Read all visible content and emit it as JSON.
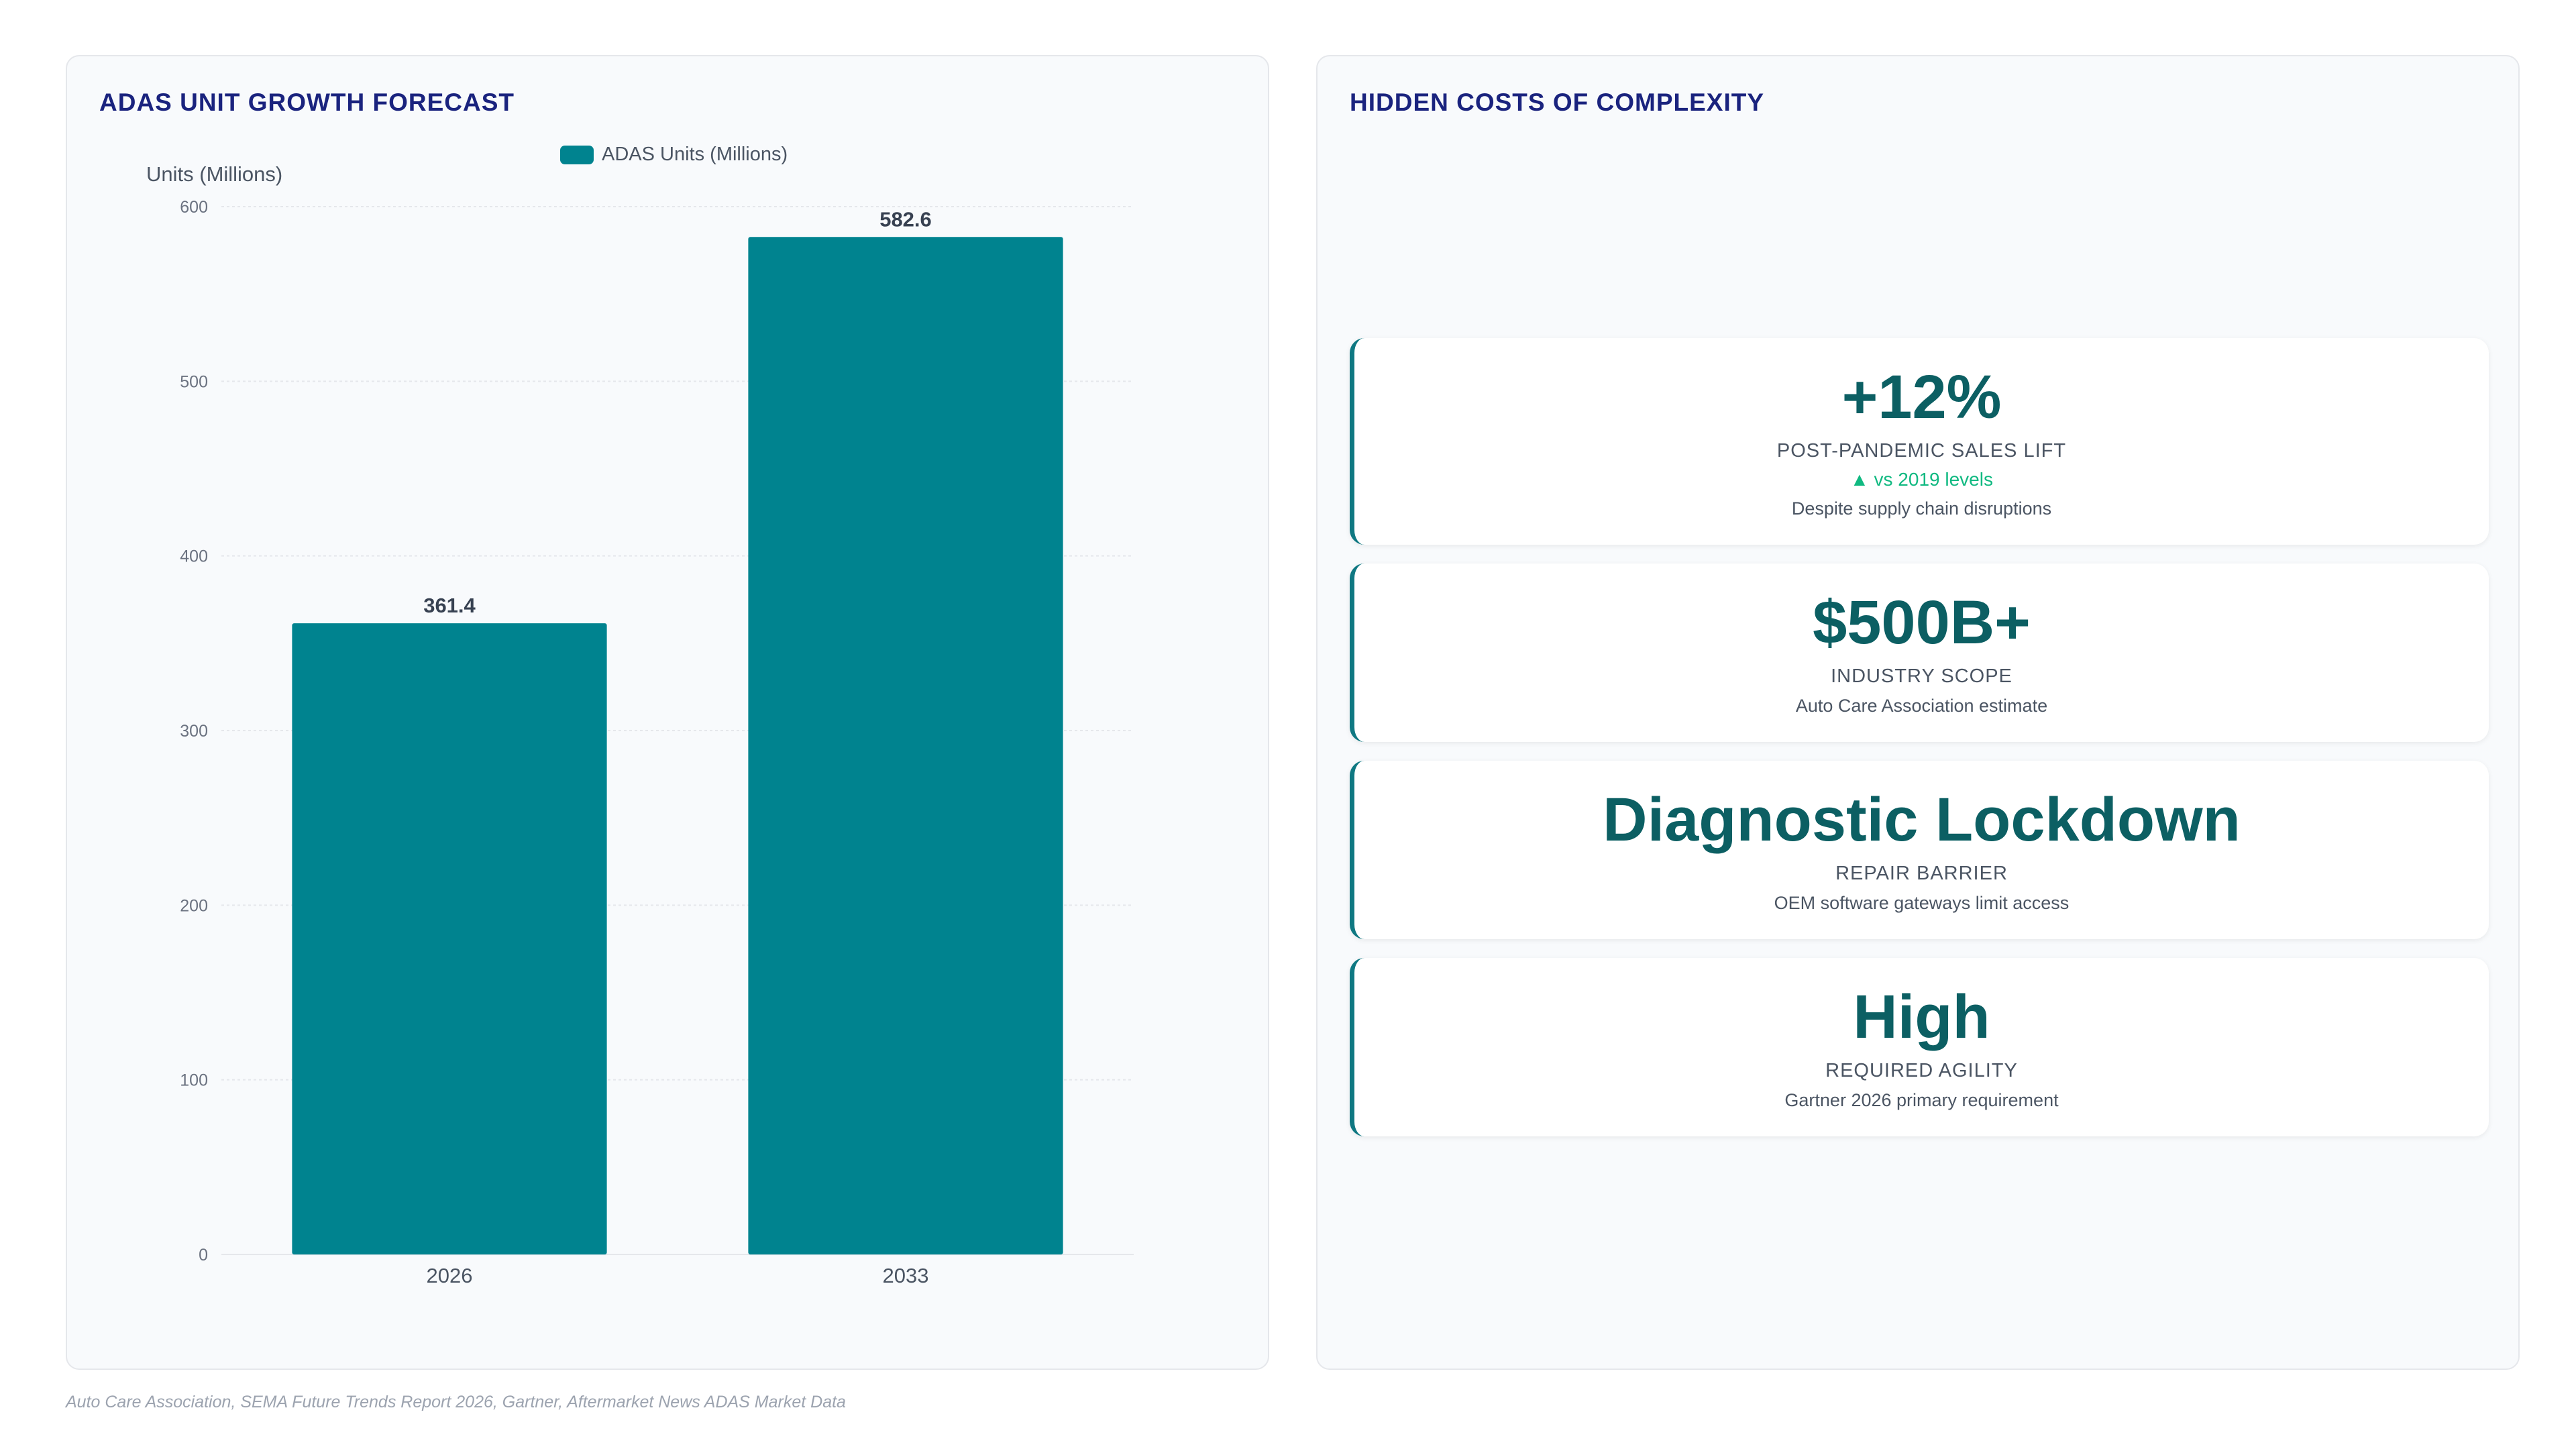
{
  "left_panel": {
    "title": "ADAS UNIT GROWTH FORECAST"
  },
  "chart_data": {
    "type": "bar",
    "categories": [
      "2026",
      "2033"
    ],
    "series": [
      {
        "name": "ADAS Units (Millions)",
        "values": [
          361.4,
          582.6
        ],
        "color": "#00838f"
      }
    ],
    "ylabel": "Units (Millions)",
    "xlabel": "",
    "ylim": [
      0,
      600
    ],
    "yticks": [
      0,
      100,
      200,
      300,
      400,
      500,
      600
    ],
    "data_labels": [
      "361.4",
      "582.6"
    ],
    "grid": true,
    "legend_position": "top-center"
  },
  "right_panel": {
    "title": "HIDDEN COSTS OF COMPLEXITY",
    "cards": [
      {
        "value": "+12%",
        "label": "POST-PANDEMIC SALES LIFT",
        "trend": "▲ vs 2019 levels",
        "note": "Despite supply chain disruptions"
      },
      {
        "value": "$500B+",
        "label": "INDUSTRY SCOPE",
        "note": "Auto Care Association estimate"
      },
      {
        "value": "Diagnostic Lockdown",
        "label": "REPAIR BARRIER",
        "note": "OEM software gateways limit access"
      },
      {
        "value": "High",
        "label": "REQUIRED AGILITY",
        "note": "Gartner 2026 primary requirement"
      }
    ]
  },
  "footer": {
    "source": "Auto Care Association, SEMA Future Trends Report 2026, Gartner, Aftermarket News ADAS Market Data"
  }
}
